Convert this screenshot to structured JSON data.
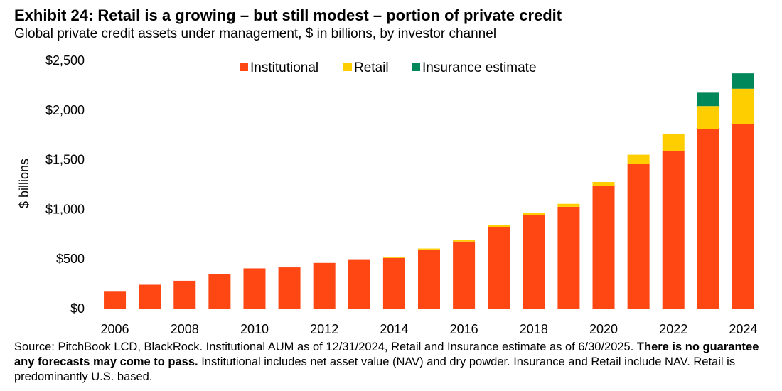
{
  "title": "Exhibit 24: Retail is a growing – but still modest – portion of private credit",
  "subtitle": "Global private credit assets under management, $ in billions, by investor channel",
  "footnote": {
    "part1": "Source: PitchBook LCD, BlackRock. Institutional AUM as of 12/31/2024, Retail and Insurance estimate as of 6/30/2025. ",
    "bold": "There is no guarantee any forecasts may come to pass.",
    "part2": " Institutional includes net asset value (NAV) and dry powder. Insurance and Retail include NAV. Retail is predominantly U.S. based."
  },
  "chart_data": {
    "type": "bar",
    "stacked": true,
    "categories": [
      "2006",
      "2007",
      "2008",
      "2009",
      "2010",
      "2011",
      "2012",
      "2013",
      "2014",
      "2015",
      "2016",
      "2017",
      "2018",
      "2019",
      "2020",
      "2021",
      "2022",
      "2023",
      "2024"
    ],
    "x_tick_labels": [
      "2006",
      "2008",
      "2010",
      "2012",
      "2014",
      "2016",
      "2018",
      "2020",
      "2022",
      "2024"
    ],
    "series": [
      {
        "name": "Institutional",
        "color": "#FF4713",
        "values": [
          170,
          240,
          280,
          345,
          405,
          415,
          460,
          490,
          510,
          595,
          675,
          820,
          940,
          1025,
          1235,
          1460,
          1590,
          1810,
          1860
        ]
      },
      {
        "name": "Retail",
        "color": "#FFCE00",
        "values": [
          0,
          0,
          0,
          0,
          0,
          0,
          0,
          0,
          8,
          10,
          15,
          20,
          25,
          30,
          40,
          90,
          165,
          230,
          355
        ]
      },
      {
        "name": "Insurance estimate",
        "color": "#00875A",
        "values": [
          0,
          0,
          0,
          0,
          0,
          0,
          0,
          0,
          0,
          0,
          0,
          0,
          0,
          0,
          0,
          0,
          0,
          135,
          155
        ]
      }
    ],
    "ylabel": "$ billions",
    "ylim": [
      0,
      2500
    ],
    "y_ticks": [
      0,
      500,
      1000,
      1500,
      2000,
      2500
    ],
    "y_tick_labels": [
      "$0",
      "$500",
      "$1,000",
      "$1,500",
      "$2,000",
      "$2,500"
    ],
    "grid": false,
    "legend_position": "top"
  }
}
